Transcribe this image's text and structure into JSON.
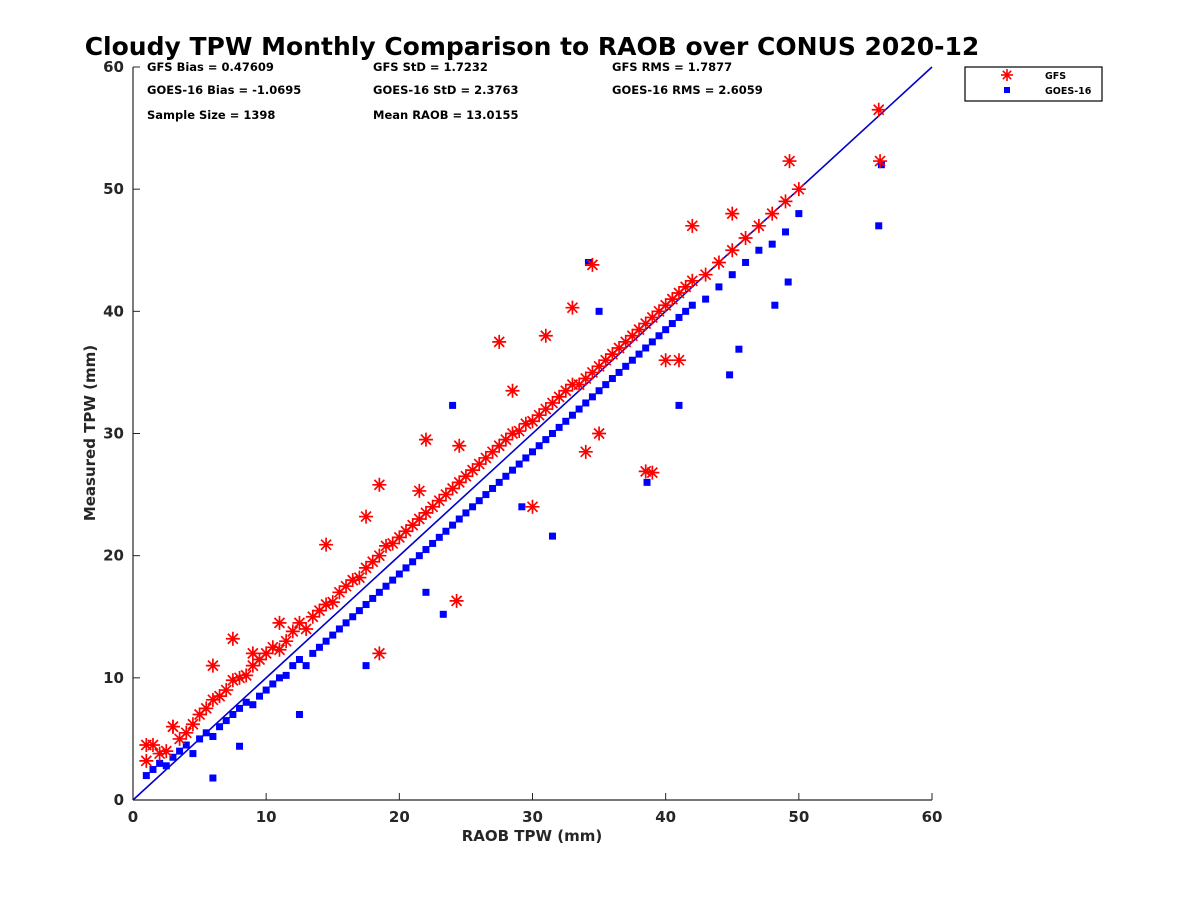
{
  "chart_data": {
    "type": "scatter",
    "title": "Cloudy TPW Monthly Comparison to RAOB over CONUS 2020-12",
    "xlabel": "RAOB TPW (mm)",
    "ylabel": "Measured TPW (mm)",
    "xlim": [
      0,
      60
    ],
    "ylim": [
      0,
      60
    ],
    "xticks": [
      "0",
      "10",
      "20",
      "30",
      "40",
      "50",
      "60"
    ],
    "yticks": [
      "0",
      "10",
      "20",
      "30",
      "40",
      "50",
      "60"
    ],
    "legend_position": "top-right (outside axes)",
    "reference_line": {
      "name": "1:1 line",
      "x": [
        0,
        60
      ],
      "y": [
        0,
        60
      ],
      "color": "#0000cc"
    },
    "stats": {
      "gfs_bias": "GFS Bias = 0.47609",
      "goes_bias": "GOES-16 Bias = -1.0695",
      "sample_size": "Sample Size = 1398",
      "gfs_std": "GFS StD = 1.7232",
      "goes_std": "GOES-16 StD = 2.3763",
      "mean_raob": "Mean RAOB = 13.0155",
      "gfs_rms": "GFS RMS = 1.7877",
      "goes_rms": "GOES-16 RMS = 2.6059"
    },
    "series": [
      {
        "name": "GFS",
        "marker": "asterisk",
        "color": "#ff0000",
        "x": [
          1.0,
          1.5,
          2.0,
          2.5,
          3.0,
          3.5,
          4.0,
          4.5,
          5.0,
          5.5,
          6.0,
          6.5,
          7.0,
          7.5,
          8.0,
          8.5,
          9.0,
          9.5,
          10.0,
          10.5,
          11.0,
          11.5,
          12.0,
          12.5,
          13.0,
          13.5,
          14.0,
          14.5,
          15.0,
          15.5,
          16.0,
          16.5,
          17.0,
          17.5,
          18.0,
          18.5,
          19.0,
          19.5,
          20.0,
          20.5,
          21.0,
          21.5,
          22.0,
          22.5,
          23.0,
          23.5,
          24.0,
          24.5,
          25.0,
          25.5,
          26.0,
          26.5,
          27.0,
          27.5,
          28.0,
          28.5,
          29.0,
          29.5,
          30.0,
          30.5,
          31.0,
          31.5,
          32.0,
          32.5,
          33.0,
          33.5,
          34.0,
          34.5,
          35.0,
          35.5,
          36.0,
          36.5,
          37.0,
          37.5,
          38.0,
          38.5,
          39.0,
          39.5,
          40.0,
          40.5,
          41.0,
          41.5,
          42.0,
          43.0,
          44.0,
          45.0,
          46.0,
          47.0,
          48.0,
          49.0,
          50.0,
          56.0,
          1.0,
          3.0,
          6.0,
          7.5,
          9.0,
          11.0,
          14.5,
          17.5,
          18.5,
          22.0,
          24.5,
          27.5,
          28.5,
          31.0,
          33.0,
          34.5,
          38.5,
          41.0,
          42.0,
          45.0,
          49.3,
          56.1,
          24.3,
          18.5,
          39.0,
          34.0,
          21.5,
          30.0,
          35.0,
          40.0
        ],
        "y": [
          3.2,
          4.5,
          3.8,
          4.0,
          6.0,
          5.0,
          5.5,
          6.2,
          7.0,
          7.5,
          8.2,
          8.5,
          9.0,
          9.8,
          10.0,
          10.2,
          11.0,
          11.5,
          12.0,
          12.5,
          12.3,
          13.0,
          13.8,
          14.5,
          14.0,
          15.0,
          15.5,
          16.0,
          16.2,
          17.0,
          17.5,
          18.0,
          18.2,
          19.0,
          19.5,
          20.0,
          20.8,
          21.0,
          21.5,
          22.0,
          22.5,
          23.0,
          23.5,
          24.0,
          24.5,
          25.0,
          25.5,
          26.0,
          26.5,
          27.0,
          27.5,
          28.0,
          28.5,
          29.0,
          29.5,
          30.0,
          30.2,
          30.8,
          31.0,
          31.5,
          32.0,
          32.5,
          33.0,
          33.5,
          34.0,
          34.0,
          34.5,
          35.0,
          35.5,
          36.0,
          36.5,
          37.0,
          37.5,
          38.0,
          38.5,
          39.0,
          39.5,
          40.0,
          40.5,
          41.0,
          41.5,
          42.0,
          42.5,
          43.0,
          44.0,
          45.0,
          46.0,
          47.0,
          48.0,
          49.0,
          50.0,
          56.5,
          4.5,
          6.0,
          11.0,
          13.2,
          12.0,
          14.5,
          20.9,
          23.2,
          25.8,
          29.5,
          29.0,
          37.5,
          33.5,
          38.0,
          40.3,
          43.8,
          26.9,
          36.0,
          47.0,
          48.0,
          52.3,
          52.3,
          16.3,
          12.0,
          26.8,
          28.5,
          25.3,
          24.0,
          30.0,
          36.0
        ]
      },
      {
        "name": "GOES-16",
        "marker": "square",
        "color": "#0000ff",
        "x": [
          1.0,
          1.5,
          2.0,
          2.5,
          3.0,
          3.5,
          4.0,
          4.5,
          5.0,
          5.5,
          6.0,
          6.5,
          7.0,
          7.5,
          8.0,
          8.5,
          9.0,
          9.5,
          10.0,
          10.5,
          11.0,
          11.5,
          12.0,
          12.5,
          13.0,
          13.5,
          14.0,
          14.5,
          15.0,
          15.5,
          16.0,
          16.5,
          17.0,
          17.5,
          18.0,
          18.5,
          19.0,
          19.5,
          20.0,
          20.5,
          21.0,
          21.5,
          22.0,
          22.5,
          23.0,
          23.5,
          24.0,
          24.5,
          25.0,
          25.5,
          26.0,
          26.5,
          27.0,
          27.5,
          28.0,
          28.5,
          29.0,
          29.5,
          30.0,
          30.5,
          31.0,
          31.5,
          32.0,
          32.5,
          33.0,
          33.5,
          34.0,
          34.5,
          35.0,
          35.5,
          36.0,
          36.5,
          37.0,
          37.5,
          38.0,
          38.5,
          39.0,
          39.5,
          40.0,
          40.5,
          41.0,
          41.5,
          42.0,
          43.0,
          44.0,
          45.0,
          46.0,
          47.0,
          48.0,
          49.0,
          50.0,
          56.0,
          56.2,
          34.2,
          35.0,
          44.8,
          45.5,
          48.2,
          49.2,
          38.6,
          41.0,
          29.2,
          31.5,
          24.0,
          23.3,
          22.0,
          8.0,
          12.5,
          17.5,
          6.0
        ],
        "y": [
          2.0,
          2.5,
          3.0,
          2.8,
          3.5,
          4.0,
          4.5,
          3.8,
          5.0,
          5.5,
          5.2,
          6.0,
          6.5,
          7.0,
          7.5,
          8.0,
          7.8,
          8.5,
          9.0,
          9.5,
          10.0,
          10.2,
          11.0,
          11.5,
          11.0,
          12.0,
          12.5,
          13.0,
          13.5,
          14.0,
          14.5,
          15.0,
          15.5,
          16.0,
          16.5,
          17.0,
          17.5,
          18.0,
          18.5,
          19.0,
          19.5,
          20.0,
          20.5,
          21.0,
          21.5,
          22.0,
          22.5,
          23.0,
          23.5,
          24.0,
          24.5,
          25.0,
          25.5,
          26.0,
          26.5,
          27.0,
          27.5,
          28.0,
          28.5,
          29.0,
          29.5,
          30.0,
          30.5,
          31.0,
          31.5,
          32.0,
          32.5,
          33.0,
          33.5,
          34.0,
          34.5,
          35.0,
          35.5,
          36.0,
          36.5,
          37.0,
          37.5,
          38.0,
          38.5,
          39.0,
          39.5,
          40.0,
          40.5,
          41.0,
          42.0,
          43.0,
          44.0,
          45.0,
          45.5,
          46.5,
          48.0,
          47.0,
          52.0,
          44.0,
          40.0,
          34.8,
          36.9,
          40.5,
          42.4,
          26.0,
          32.3,
          24.0,
          21.6,
          32.3,
          15.2,
          17.0,
          4.4,
          7.0,
          11.0,
          1.8
        ]
      }
    ]
  }
}
